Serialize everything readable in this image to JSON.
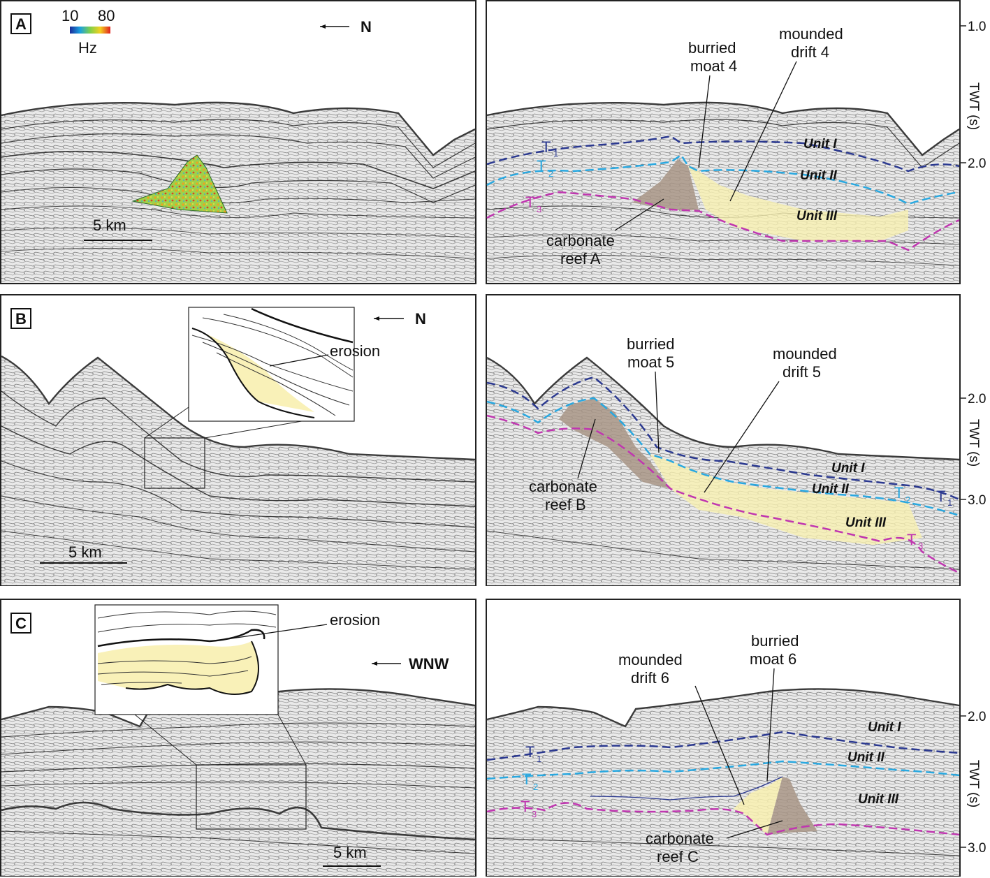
{
  "panels": [
    {
      "letter": "A",
      "direction": "N",
      "scale_bar": "5 km",
      "colorbar": {
        "min": "10",
        "max": "80",
        "unit": "Hz"
      },
      "labels": {
        "moat": [
          "burried",
          "moat 4"
        ],
        "drift": [
          "mounded",
          "drift 4"
        ],
        "reef": [
          "carbonate",
          "reef A"
        ]
      },
      "units": [
        "Unit I",
        "Unit II",
        "Unit III"
      ],
      "horizons": {
        "t1": "T",
        "t1_sub": "1",
        "t2": "T",
        "t2_sub": "2",
        "t3": "T",
        "t3_sub": "3"
      },
      "axis": {
        "title": "TWT (s)",
        "ticks": [
          "1.0",
          "2.0"
        ]
      }
    },
    {
      "letter": "B",
      "direction": "N",
      "scale_bar": "5 km",
      "inset_label": "erosion",
      "labels": {
        "moat": [
          "burried",
          "moat 5"
        ],
        "drift": [
          "mounded",
          "drift 5"
        ],
        "reef": [
          "carbonate",
          "reef B"
        ]
      },
      "units": [
        "Unit I",
        "Unit II",
        "Unit III"
      ],
      "horizons": {
        "t1": "T",
        "t1_sub": "1",
        "t2": "T",
        "t2_sub": "2",
        "t3": "T",
        "t3_sub": "3"
      },
      "axis": {
        "title": "TWT (s)",
        "ticks": [
          "2.0",
          "3.0"
        ]
      }
    },
    {
      "letter": "C",
      "direction": "WNW",
      "scale_bar": "5 km",
      "inset_label": "erosion",
      "labels": {
        "moat": [
          "burried",
          "moat 6"
        ],
        "drift": [
          "mounded",
          "drift 6"
        ],
        "reef": [
          "carbonate",
          "reef C"
        ]
      },
      "units": [
        "Unit I",
        "Unit II",
        "Unit III"
      ],
      "horizons": {
        "t1": "T",
        "t1_sub": "1",
        "t2": "T",
        "t2_sub": "2",
        "t3": "T",
        "t3_sub": "3"
      },
      "axis": {
        "title": "TWT (s)",
        "ticks": [
          "2.0",
          "3.0"
        ]
      }
    }
  ],
  "colors": {
    "t1": "#2b3990",
    "t2": "#29a8e0",
    "t3": "#c036b0",
    "reef": "#a89586",
    "drift": "#f8f0b0",
    "seismic_line": "#3a3a3a"
  }
}
